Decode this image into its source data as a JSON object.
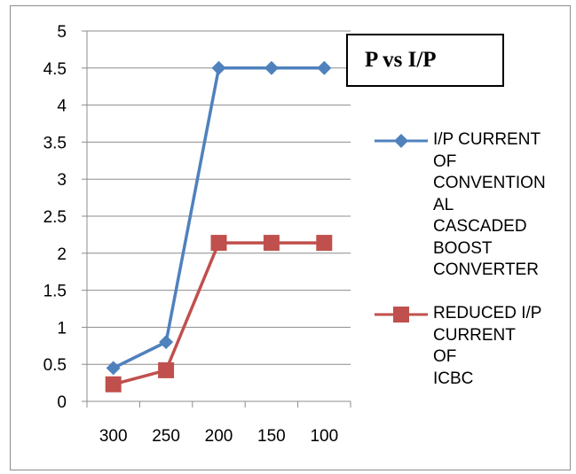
{
  "chart_data": {
    "type": "line",
    "title": "P vs I/P",
    "categories": [
      "300",
      "250",
      "200",
      "150",
      "100"
    ],
    "ylim": [
      0,
      5
    ],
    "yticks": [
      "0",
      "0.5",
      "1",
      "1.5",
      "2",
      "2.5",
      "3",
      "3.5",
      "4",
      "4.5",
      "5"
    ],
    "grid": true,
    "legend_position": "right",
    "series": [
      {
        "name": "I/P CURRENT OF CONVENTION AL CASCADED BOOST CONVERTER",
        "name_lines": [
          "I/P CURRENT",
          "OF",
          "CONVENTION",
          "AL CASCADED",
          "BOOST",
          "CONVERTER"
        ],
        "values": [
          0.45,
          0.8,
          4.5,
          4.5,
          4.5
        ],
        "color": "#4f81bd",
        "marker": "diamond"
      },
      {
        "name": "REDUCED I/P CURRENT OF ICBC",
        "name_lines": [
          "REDUCED I/P",
          "CURRENT OF",
          "ICBC"
        ],
        "values": [
          0.23,
          0.42,
          2.14,
          2.14,
          2.14
        ],
        "color": "#c0504d",
        "marker": "square"
      }
    ]
  }
}
